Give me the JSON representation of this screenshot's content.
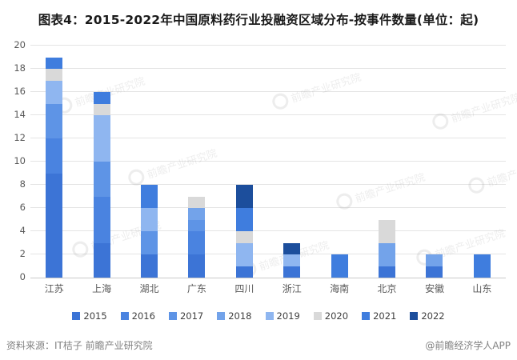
{
  "title": "图表4：2015-2022年中国原料药行业投融资区域分布-按事件数量(单位：起)",
  "footer": {
    "source": "资料来源：IT桔子 前瞻产业研究院",
    "credit": "@前瞻经济学人APP"
  },
  "watermark": {
    "text": "前瞻产业研究院"
  },
  "colors": {
    "grid": "#e4e4e4",
    "axis_text": "#595959",
    "title_text": "#1a1a1a",
    "footer_text": "#828282"
  },
  "chart_data": {
    "type": "bar",
    "stacked": true,
    "title": "图表4：2015-2022年中国原料药行业投融资区域分布-按事件数量(单位：起)",
    "unit": "起",
    "categories": [
      "江苏",
      "上海",
      "湖北",
      "广东",
      "四川",
      "浙江",
      "海南",
      "北京",
      "安徽",
      "山东"
    ],
    "series": [
      {
        "name": "2015",
        "color": "#3C74D6",
        "values": [
          9,
          3,
          2,
          2,
          1,
          1,
          0,
          1,
          1,
          0
        ]
      },
      {
        "name": "2016",
        "color": "#4A83E0",
        "values": [
          3,
          4,
          0,
          2,
          0,
          0,
          0,
          0,
          0,
          0
        ]
      },
      {
        "name": "2017",
        "color": "#5E94E6",
        "values": [
          3,
          3,
          2,
          1,
          0,
          0,
          0,
          0,
          0,
          0
        ]
      },
      {
        "name": "2018",
        "color": "#73A3EA",
        "values": [
          0,
          0,
          0,
          1,
          0,
          0,
          0,
          2,
          1,
          0
        ]
      },
      {
        "name": "2019",
        "color": "#8FB6F0",
        "values": [
          2,
          4,
          2,
          0,
          2,
          1,
          0,
          0,
          0,
          0
        ]
      },
      {
        "name": "2020",
        "color": "#D9D9D9",
        "values": [
          1,
          1,
          0,
          1,
          1,
          0,
          0,
          2,
          0,
          0
        ]
      },
      {
        "name": "2021",
        "color": "#3F7DDE",
        "values": [
          1,
          1,
          2,
          0,
          2,
          0,
          2,
          0,
          0,
          2
        ]
      },
      {
        "name": "2022",
        "color": "#1C4E9C",
        "values": [
          0,
          0,
          0,
          0,
          2,
          1,
          0,
          0,
          0,
          0
        ]
      }
    ],
    "totals": [
      19,
      16,
      8,
      7,
      8,
      3,
      2,
      5,
      2,
      2
    ],
    "ylim": [
      0,
      20
    ],
    "ytick_step": 2,
    "grid": true,
    "legend_position": "bottom"
  }
}
